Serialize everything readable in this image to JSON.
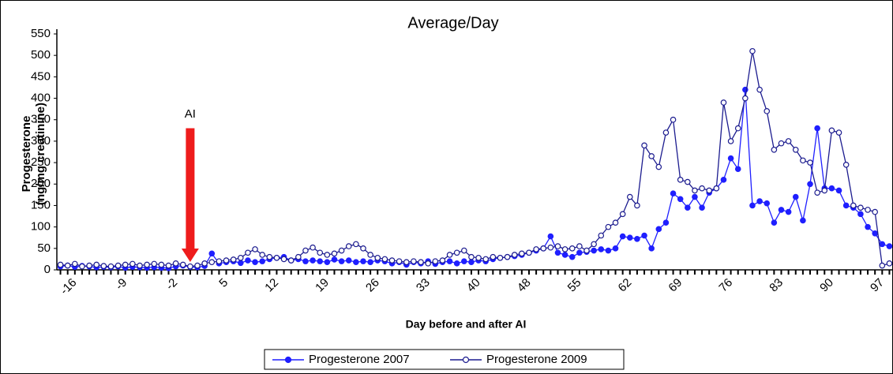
{
  "chart_data": {
    "type": "line",
    "title": "Average/Day",
    "y_label": [
      "Progesterone",
      "(ng/mg creatinine)"
    ],
    "x_label": "Day before and after AI",
    "annotation": "AI",
    "categories": [
      null,
      null,
      "-16",
      null,
      null,
      null,
      null,
      null,
      null,
      "-9",
      null,
      null,
      null,
      null,
      null,
      null,
      "-2",
      null,
      null,
      null,
      null,
      null,
      null,
      "5",
      null,
      null,
      null,
      null,
      null,
      null,
      "12",
      null,
      null,
      null,
      null,
      null,
      null,
      "19",
      null,
      null,
      null,
      null,
      null,
      null,
      "26",
      null,
      null,
      null,
      null,
      null,
      null,
      "33",
      null,
      null,
      null,
      null,
      null,
      null,
      "40",
      null,
      null,
      null,
      null,
      null,
      null,
      "48",
      null,
      null,
      null,
      null,
      null,
      null,
      "55",
      null,
      null,
      null,
      null,
      null,
      null,
      "62",
      null,
      null,
      null,
      null,
      null,
      null,
      "69",
      null,
      null,
      null,
      null,
      null,
      null,
      "76",
      null,
      null,
      null,
      null,
      null,
      null,
      "83",
      null,
      null,
      null,
      null,
      null,
      null,
      "90",
      null,
      null,
      null,
      null,
      null,
      null,
      "97",
      null
    ],
    "series": [
      {
        "name": "Progesterone 2007",
        "color": "#1f1fff",
        "marker": "filled",
        "values": [
          8,
          10,
          7,
          9,
          8,
          6,
          7,
          6,
          8,
          5,
          7,
          6,
          5,
          6,
          5,
          4,
          8,
          10,
          7,
          6,
          9,
          38,
          15,
          18,
          20,
          16,
          22,
          18,
          20,
          25,
          28,
          30,
          22,
          25,
          20,
          22,
          20,
          18,
          24,
          20,
          22,
          18,
          20,
          18,
          22,
          20,
          15,
          18,
          12,
          18,
          15,
          20,
          14,
          18,
          20,
          15,
          20,
          18,
          22,
          20,
          25,
          28,
          30,
          32,
          35,
          40,
          45,
          50,
          78,
          40,
          35,
          30,
          40,
          42,
          45,
          48,
          45,
          50,
          78,
          75,
          72,
          80,
          50,
          95,
          110,
          178,
          165,
          145,
          170,
          145,
          180,
          190,
          210,
          260,
          235,
          420,
          150,
          160,
          155,
          110,
          140,
          135,
          170,
          115,
          200,
          330,
          190,
          190,
          185,
          150,
          145,
          130,
          100,
          85,
          60,
          55
        ]
      },
      {
        "name": "Progesterone 2009",
        "color": "#1c1c8f",
        "marker": "hollow",
        "values": [
          12,
          10,
          14,
          8,
          10,
          12,
          9,
          8,
          10,
          12,
          14,
          10,
          12,
          14,
          12,
          10,
          15,
          12,
          8,
          10,
          15,
          18,
          20,
          22,
          24,
          28,
          40,
          48,
          35,
          30,
          28,
          25,
          22,
          30,
          45,
          52,
          40,
          35,
          38,
          45,
          55,
          60,
          50,
          35,
          28,
          25,
          22,
          20,
          18,
          20,
          18,
          15,
          20,
          22,
          35,
          40,
          45,
          30,
          28,
          25,
          30,
          28,
          30,
          35,
          38,
          40,
          48,
          50,
          52,
          55,
          48,
          50,
          55,
          45,
          60,
          80,
          100,
          110,
          130,
          170,
          150,
          290,
          265,
          240,
          320,
          350,
          210,
          205,
          185,
          190,
          185,
          190,
          390,
          300,
          330,
          400,
          510,
          420,
          370,
          280,
          295,
          300,
          280,
          255,
          250,
          180,
          185,
          325,
          320,
          245,
          150,
          145,
          140,
          135,
          10,
          15
        ]
      }
    ],
    "ylim": [
      0,
      550
    ],
    "yticks": [
      0,
      50,
      100,
      150,
      200,
      250,
      300,
      350,
      400,
      450,
      500,
      550
    ]
  }
}
